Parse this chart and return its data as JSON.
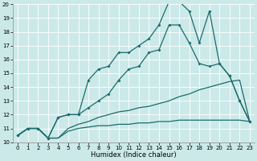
{
  "xlabel": "Humidex (Indice chaleur)",
  "xlim": [
    -0.5,
    23.5
  ],
  "ylim": [
    10,
    20
  ],
  "xticks": [
    0,
    1,
    2,
    3,
    4,
    5,
    6,
    7,
    8,
    9,
    10,
    11,
    12,
    13,
    14,
    15,
    16,
    17,
    18,
    19,
    20,
    21,
    22,
    23
  ],
  "yticks": [
    10,
    11,
    12,
    13,
    14,
    15,
    16,
    17,
    18,
    19,
    20
  ],
  "bg_color": "#cce9e9",
  "grid_color": "#ffffff",
  "line_color": "#1c6b6b",
  "line1_x": [
    0,
    1,
    2,
    3,
    4,
    5,
    6,
    7,
    8,
    9,
    10,
    11,
    12,
    13,
    14,
    15,
    16,
    17,
    18,
    19,
    20,
    21,
    22,
    23
  ],
  "line1_y": [
    10.5,
    11.0,
    11.0,
    10.3,
    10.3,
    10.8,
    11.0,
    11.1,
    11.2,
    11.2,
    11.3,
    11.3,
    11.4,
    11.4,
    11.5,
    11.5,
    11.6,
    11.6,
    11.6,
    11.6,
    11.6,
    11.6,
    11.6,
    11.5
  ],
  "line2_x": [
    0,
    1,
    2,
    3,
    4,
    5,
    6,
    7,
    8,
    9,
    10,
    11,
    12,
    13,
    14,
    15,
    16,
    17,
    18,
    19,
    20,
    21,
    22,
    23
  ],
  "line2_y": [
    10.5,
    11.0,
    11.0,
    10.3,
    10.3,
    11.0,
    11.3,
    11.5,
    11.8,
    12.0,
    12.2,
    12.3,
    12.5,
    12.6,
    12.8,
    13.0,
    13.3,
    13.5,
    13.8,
    14.0,
    14.2,
    14.4,
    14.5,
    11.5
  ],
  "line3_x": [
    0,
    1,
    2,
    3,
    4,
    5,
    6,
    7,
    8,
    9,
    10,
    11,
    12,
    13,
    14,
    15,
    16,
    17,
    18,
    19,
    20,
    21,
    22,
    23
  ],
  "line3_y": [
    10.5,
    11.0,
    11.0,
    10.3,
    11.8,
    12.0,
    12.0,
    12.5,
    13.0,
    13.5,
    14.5,
    15.3,
    15.5,
    16.5,
    16.7,
    18.5,
    18.5,
    17.2,
    15.7,
    15.5,
    15.7,
    14.8,
    13.0,
    11.5
  ],
  "line4_x": [
    0,
    1,
    2,
    3,
    4,
    5,
    6,
    7,
    8,
    9,
    10,
    11,
    12,
    13,
    14,
    15,
    16,
    17,
    18,
    19,
    20,
    21,
    22,
    23
  ],
  "line4_y": [
    10.5,
    11.0,
    11.0,
    10.3,
    11.8,
    12.0,
    12.0,
    14.5,
    15.3,
    15.5,
    16.5,
    16.5,
    17.0,
    17.5,
    18.5,
    20.2,
    20.2,
    19.5,
    17.2,
    19.5,
    15.7,
    14.8,
    13.0,
    11.5
  ]
}
